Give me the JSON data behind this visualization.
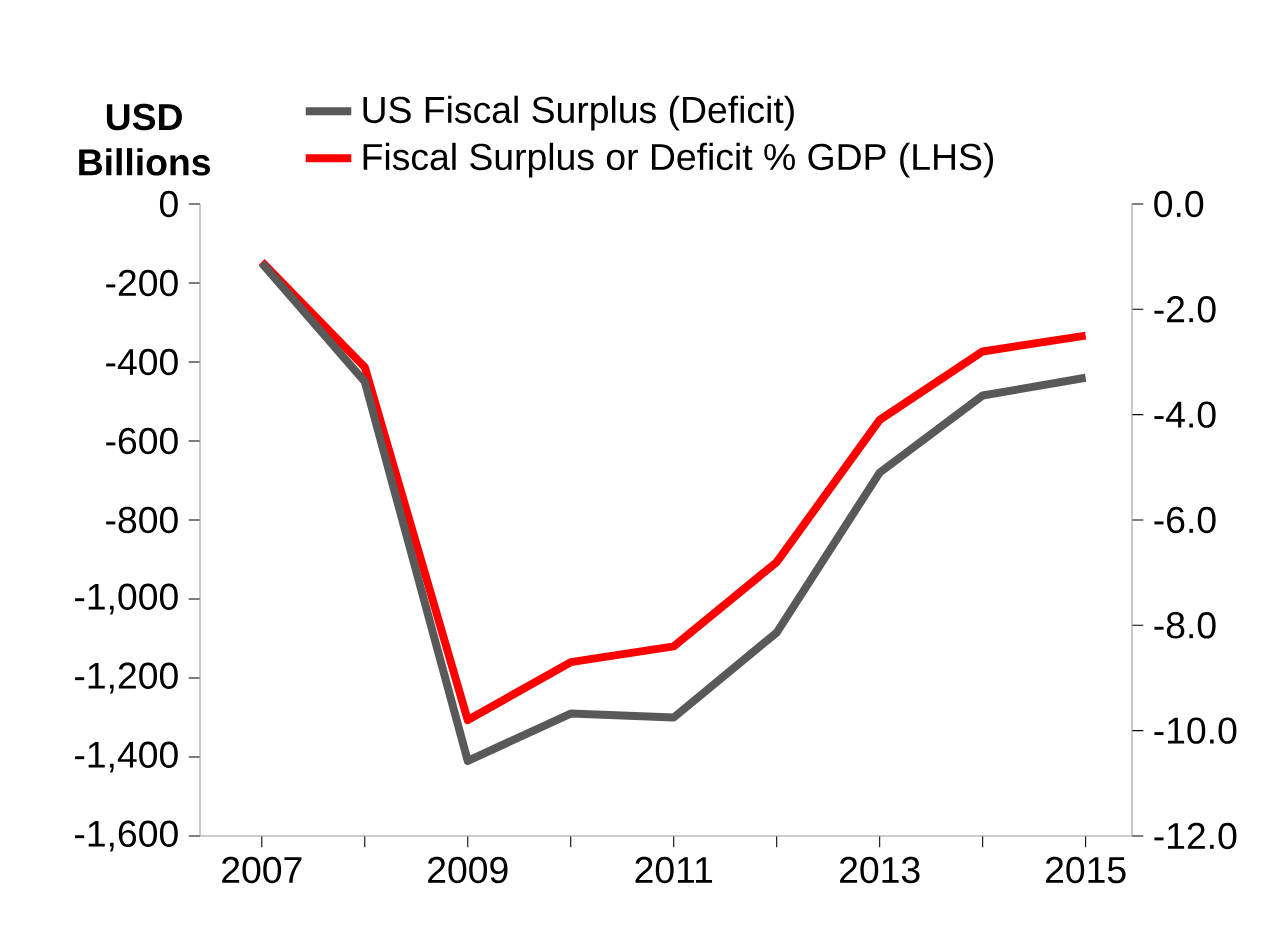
{
  "chart_data": {
    "type": "line",
    "ylabel": "USD Billions",
    "x": [
      2007,
      2008,
      2009,
      2010,
      2011,
      2012,
      2013,
      2014,
      2015
    ],
    "series": [
      {
        "name": "US Fiscal Surplus (Deficit)",
        "color": "#595959",
        "values": [
          -150,
          -450,
          -1410,
          -1290,
          -1300,
          -1085,
          -680,
          -485,
          -440
        ]
      },
      {
        "name": "Fiscal Surplus or Deficit % GDP (LHS)",
        "color": "#ff0000",
        "axis": "y2",
        "values": [
          -1.1,
          -3.1,
          -9.8,
          -8.7,
          -8.4,
          -6.8,
          -4.1,
          -2.8,
          -2.5
        ]
      }
    ],
    "xlim": [
      2006.4,
      2015.45
    ],
    "xticks": [
      2007,
      {
        "value": 2008,
        "label": null
      },
      2009,
      {
        "value": 2010,
        "label": null
      },
      2011,
      {
        "value": 2012,
        "label": null
      },
      2013,
      {
        "value": 2014,
        "label": null
      },
      2015
    ],
    "ylim": [
      -1600,
      0
    ],
    "yticks": [
      {
        "value": -1600,
        "label": "-1,600"
      },
      {
        "value": -1400,
        "label": "-1,400"
      },
      {
        "value": -1200,
        "label": "-1,200"
      },
      {
        "value": -1000,
        "label": "-1,000"
      },
      -800,
      -600,
      -400,
      -200,
      0
    ],
    "y2lim": [
      -12,
      0
    ],
    "y2ticks": [
      {
        "value": -12,
        "label": "-12.0"
      },
      {
        "value": -10,
        "label": "-10.0"
      },
      {
        "value": -8,
        "label": "-8.0"
      },
      {
        "value": -6,
        "label": "-6.0"
      },
      {
        "value": -4,
        "label": "-4.0"
      },
      {
        "value": -2,
        "label": "-2.0"
      },
      {
        "value": 0,
        "label": "0.0"
      }
    ],
    "legend": "top"
  }
}
